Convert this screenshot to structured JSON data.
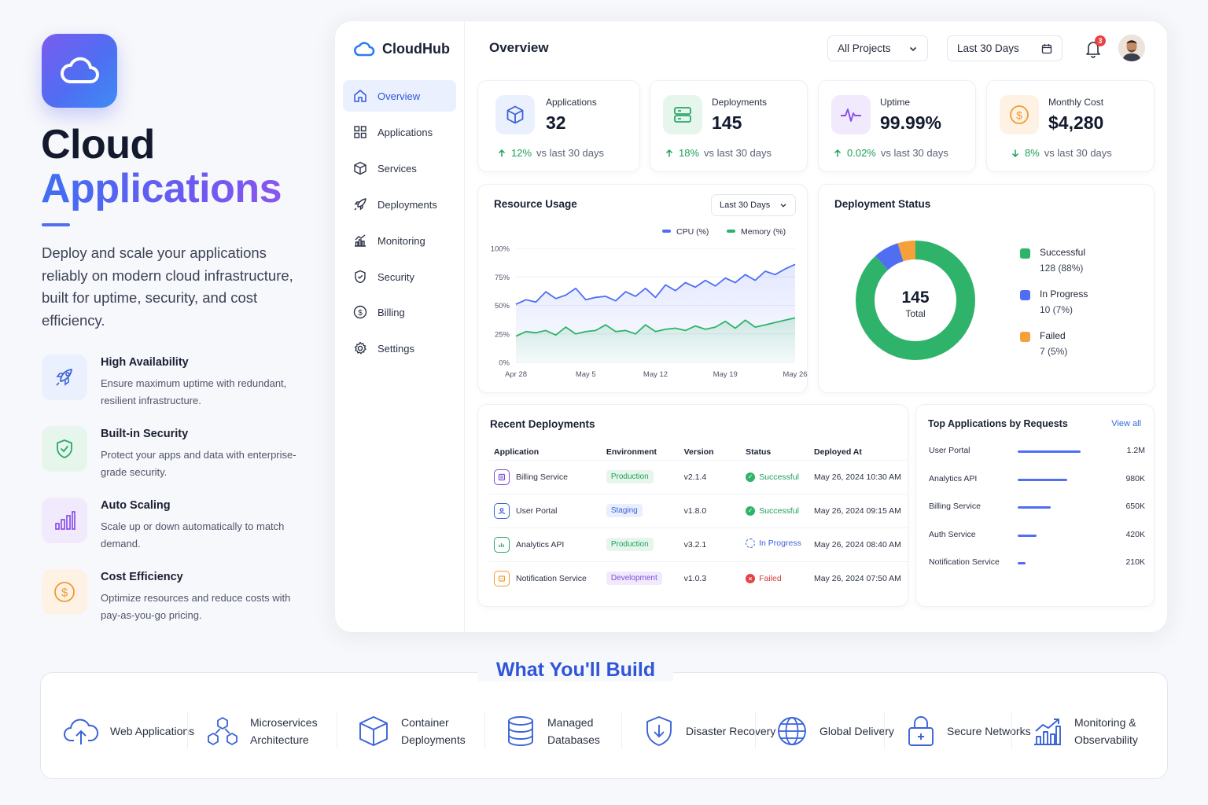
{
  "hero": {
    "title_line1": "Cloud",
    "title_line2": "Applications",
    "description": "Deploy and scale your applications reliably on modern cloud infrastructure, built for uptime, security, and cost efficiency.",
    "features": [
      {
        "title": "High Availability",
        "desc": "Ensure maximum uptime with redundant, resilient infrastructure.",
        "icon": "rocket-icon"
      },
      {
        "title": "Built-in Security",
        "desc": "Protect your apps and data with enterprise-grade security.",
        "icon": "shield-icon"
      },
      {
        "title": "Auto Scaling",
        "desc": "Scale up or down automatically to match demand.",
        "icon": "bar-chart-icon"
      },
      {
        "title": "Cost Efficiency",
        "desc": "Optimize resources and reduce costs with pay-as-you-go pricing.",
        "icon": "dollar-icon"
      }
    ]
  },
  "dashboard": {
    "brand": "CloudHub",
    "nav": [
      {
        "label": "Overview",
        "icon": "home-icon",
        "active": true
      },
      {
        "label": "Applications",
        "icon": "grid-icon"
      },
      {
        "label": "Services",
        "icon": "cube-icon"
      },
      {
        "label": "Deployments",
        "icon": "rocket-icon"
      },
      {
        "label": "Monitoring",
        "icon": "chart-icon"
      },
      {
        "label": "Security",
        "icon": "shield-icon"
      },
      {
        "label": "Billing",
        "icon": "dollar-icon"
      },
      {
        "label": "Settings",
        "icon": "gear-icon"
      }
    ],
    "page_title": "Overview",
    "project_select": "All Projects",
    "date_select": "Last 30 Days",
    "notification_count": "3",
    "stats": [
      {
        "label": "Applications",
        "value": "32",
        "pct": "12%",
        "trend": "vs last 30 days",
        "direction": "up",
        "color": "#4f6ef2"
      },
      {
        "label": "Deployments",
        "value": "145",
        "pct": "18%",
        "trend": "vs last 30 days",
        "direction": "up",
        "color": "#27a869"
      },
      {
        "label": "Uptime",
        "value": "99.99%",
        "pct": "0.02%",
        "trend": "vs last 30 days",
        "direction": "up",
        "color": "#8a4fe8"
      },
      {
        "label": "Monthly Cost",
        "value": "$4,280",
        "pct": "8%",
        "trend": "vs last 30 days",
        "direction": "down",
        "color": "#f29a2e"
      }
    ],
    "resource_usage": {
      "title": "Resource Usage",
      "range": "Last 30 Days",
      "legend_cpu": "CPU (%)",
      "legend_mem": "Memory (%)"
    },
    "deployment_status": {
      "title": "Deployment Status",
      "total_value": "145",
      "total_label": "Total",
      "legend": [
        {
          "label": "Successful",
          "value": "128 (88%)",
          "color": "#2fb36a"
        },
        {
          "label": "In Progress",
          "value": "10 (7%)",
          "color": "#4f6ef2"
        },
        {
          "label": "Failed",
          "value": "7 (5%)",
          "color": "#f5a03a"
        }
      ]
    },
    "recent_deployments": {
      "title": "Recent Deployments",
      "headers": [
        "Application",
        "Environment",
        "Version",
        "Status",
        "Deployed At"
      ],
      "rows": [
        {
          "app": "Billing Service",
          "env": "Production",
          "env_kind": "prod",
          "version": "v2.1.4",
          "status": "Successful",
          "status_kind": "ok",
          "deployed": "May 26, 2024 10:30 AM",
          "icon_color": "#7a4fd6"
        },
        {
          "app": "User Portal",
          "env": "Staging",
          "env_kind": "stag",
          "version": "v1.8.0",
          "status": "Successful",
          "status_kind": "ok",
          "deployed": "May 26, 2024 09:15 AM",
          "icon_color": "#3b63d8"
        },
        {
          "app": "Analytics API",
          "env": "Production",
          "env_kind": "prod",
          "version": "v3.2.1",
          "status": "In Progress",
          "status_kind": "progress",
          "deployed": "May 26, 2024 08:40 AM",
          "icon_color": "#27a869"
        },
        {
          "app": "Notification Service",
          "env": "Development",
          "env_kind": "dev",
          "version": "v1.0.3",
          "status": "Failed",
          "status_kind": "fail",
          "deployed": "May 26, 2024 07:50 AM",
          "icon_color": "#f29a2e"
        }
      ]
    },
    "top_apps": {
      "title": "Top Applications by Requests",
      "view_all": "View all",
      "items": [
        {
          "name": "User Portal",
          "value": "1.2M",
          "fraction": 0.8
        },
        {
          "name": "Analytics API",
          "value": "980K",
          "fraction": 0.63
        },
        {
          "name": "Billing Service",
          "value": "650K",
          "fraction": 0.42
        },
        {
          "name": "Auth Service",
          "value": "420K",
          "fraction": 0.24
        },
        {
          "name": "Notification Service",
          "value": "210K",
          "fraction": 0.1
        }
      ]
    }
  },
  "chart_data": {
    "type": "area",
    "title": "Resource Usage",
    "x": [
      "Apr 28",
      "Apr 29",
      "Apr 30",
      "May 1",
      "May 2",
      "May 3",
      "May 4",
      "May 5",
      "May 6",
      "May 7",
      "May 8",
      "May 9",
      "May 10",
      "May 11",
      "May 12",
      "May 13",
      "May 14",
      "May 15",
      "May 16",
      "May 17",
      "May 18",
      "May 19",
      "May 20",
      "May 21",
      "May 22",
      "May 23",
      "May 24",
      "May 25",
      "May 26"
    ],
    "x_tick_labels": [
      "Apr 28",
      "May 5",
      "May 12",
      "May 19",
      "May 26"
    ],
    "y_tick_labels": [
      "0%",
      "25%",
      "50%",
      "75%",
      "100%"
    ],
    "ylim": [
      0,
      100
    ],
    "series": [
      {
        "name": "CPU (%)",
        "color": "#4f6ef2",
        "values": [
          51,
          55,
          53,
          62,
          56,
          59,
          65,
          55,
          57,
          58,
          54,
          62,
          58,
          65,
          57,
          68,
          63,
          70,
          66,
          72,
          67,
          74,
          70,
          77,
          72,
          80,
          77,
          82,
          86
        ]
      },
      {
        "name": "Memory (%)",
        "color": "#2fb36a",
        "values": [
          23,
          27,
          26,
          28,
          24,
          31,
          25,
          27,
          28,
          33,
          27,
          28,
          25,
          33,
          27,
          29,
          30,
          28,
          32,
          29,
          31,
          36,
          30,
          37,
          31,
          33,
          35,
          37,
          39
        ]
      }
    ]
  },
  "bottom": {
    "title": "What You'll Build",
    "items": [
      {
        "label": "Web Applications",
        "icon": "cloud-upload-icon"
      },
      {
        "label": "Microservices Architecture",
        "icon": "network-icon"
      },
      {
        "label": "Container Deployments",
        "icon": "container-icon"
      },
      {
        "label": "Managed Databases",
        "icon": "database-icon"
      },
      {
        "label": "Disaster Recovery",
        "icon": "shield-check-icon"
      },
      {
        "label": "Global Delivery",
        "icon": "globe-icon"
      },
      {
        "label": "Secure Networks",
        "icon": "lock-icon"
      },
      {
        "label": "Monitoring & Observability",
        "icon": "growth-chart-icon"
      }
    ]
  }
}
